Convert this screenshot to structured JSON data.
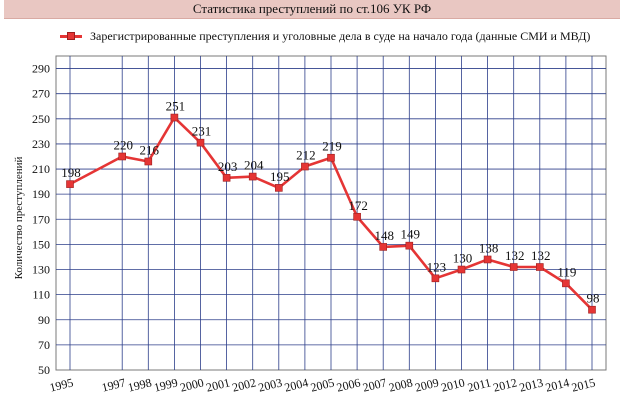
{
  "title": "Статистика преступлений по ст.106 УК РФ",
  "chart_data": {
    "type": "line",
    "title": "Статистика преступлений по ст.106 УК РФ",
    "xlabel": "",
    "ylabel": "Количество преступлений",
    "legend_position": "top-left",
    "grid": true,
    "ylim": [
      50,
      300
    ],
    "yticks": [
      50,
      70,
      90,
      110,
      130,
      150,
      170,
      190,
      210,
      230,
      250,
      270,
      290
    ],
    "xticks": [
      "1995",
      "1997",
      "1998",
      "1999",
      "2000",
      "2001",
      "2002",
      "2003",
      "2004",
      "2005",
      "2006",
      "2007",
      "2008",
      "2009",
      "2010",
      "2011",
      "2012",
      "2013",
      "2014",
      "2015"
    ],
    "series": [
      {
        "name": "Зарегистрированные преступления и уголовные дела в суде на начало года (данные СМИ и МВД)",
        "color": "#e53535",
        "x": [
          "1995",
          "1997",
          "1998",
          "1999",
          "2000",
          "2001",
          "2002",
          "2003",
          "2004",
          "2005",
          "2006",
          "2007",
          "2008",
          "2009",
          "2010",
          "2011",
          "2012",
          "2013",
          "2014",
          "2015"
        ],
        "values": [
          198,
          220,
          216,
          251,
          231,
          203,
          204,
          195,
          212,
          219,
          172,
          148,
          149,
          123,
          130,
          138,
          132,
          132,
          119,
          98
        ]
      }
    ]
  }
}
